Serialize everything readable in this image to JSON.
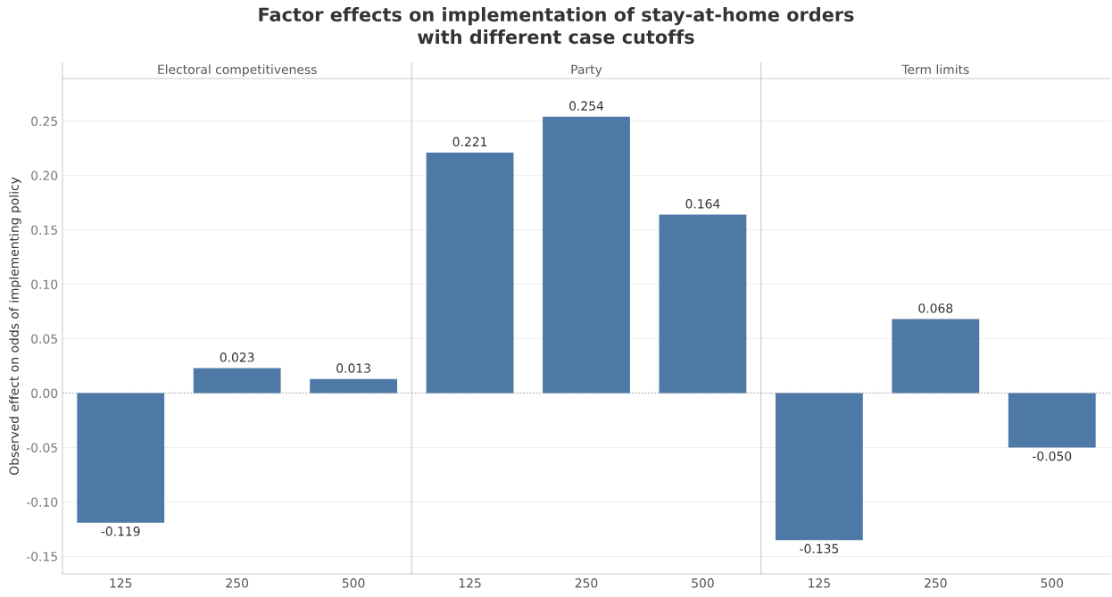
{
  "chart_data": [
    {
      "type": "bar",
      "title": "Factor effects on implementation of stay-at-home orders\nwith different case cutoffs",
      "subtitle": "Electoral competitiveness",
      "ylabel": "Observed effect on odds of implementing policy",
      "categories": [
        "125",
        "250",
        "500"
      ],
      "values": [
        -0.119,
        0.023,
        0.013
      ],
      "value_labels": [
        "-0.119",
        "0.023",
        "0.013"
      ],
      "color": "#4e79a7",
      "ylim": [
        -0.166,
        0.289
      ],
      "yticks": [
        {
          "value": -0.15,
          "label": "-0.15"
        },
        {
          "value": -0.1,
          "label": "-0.10"
        },
        {
          "value": -0.05,
          "label": "-0.05"
        },
        {
          "value": 0,
          "label": "0.00"
        },
        {
          "value": 0.05,
          "label": "0.05"
        },
        {
          "value": 0.1,
          "label": "0.10"
        },
        {
          "value": 0.15,
          "label": "0.15"
        },
        {
          "value": 0.2,
          "label": "0.20"
        },
        {
          "value": 0.25,
          "label": "0.25"
        }
      ],
      "grid": "y",
      "ref_lines": [
        {
          "axis": "y",
          "value": 0,
          "color": "#bbbbbb",
          "line_style": "dotted"
        }
      ]
    },
    {
      "type": "bar",
      "subtitle": "Party",
      "categories": [
        "125",
        "250",
        "500"
      ],
      "values": [
        0.221,
        0.254,
        0.164
      ],
      "value_labels": [
        "0.221",
        "0.254",
        "0.164"
      ],
      "color": "#4e79a7",
      "ylim": [
        -0.166,
        0.289
      ],
      "yticks": [
        -0.15,
        -0.1,
        -0.05,
        0,
        0.05,
        0.1,
        0.15,
        0.2,
        0.25
      ],
      "tick_labels": "x",
      "grid": "y",
      "ref_lines": [
        {
          "axis": "y",
          "value": 0,
          "color": "#bbbbbb",
          "line_style": "dotted"
        }
      ]
    },
    {
      "type": "bar",
      "subtitle": "Term limits",
      "categories": [
        "125",
        "250",
        "500"
      ],
      "values": [
        -0.135,
        0.068,
        -0.05
      ],
      "value_labels": [
        "-0.135",
        "0.068",
        "-0.050"
      ],
      "color": "#4e79a7",
      "ylim": [
        -0.166,
        0.289
      ],
      "yticks": [
        -0.15,
        -0.1,
        -0.05,
        0,
        0.05,
        0.1,
        0.15,
        0.2,
        0.25
      ],
      "tick_labels": "x",
      "grid": "y",
      "ref_lines": [
        {
          "axis": "y",
          "value": 0,
          "color": "#bbbbbb",
          "line_style": "dotted"
        }
      ]
    }
  ]
}
